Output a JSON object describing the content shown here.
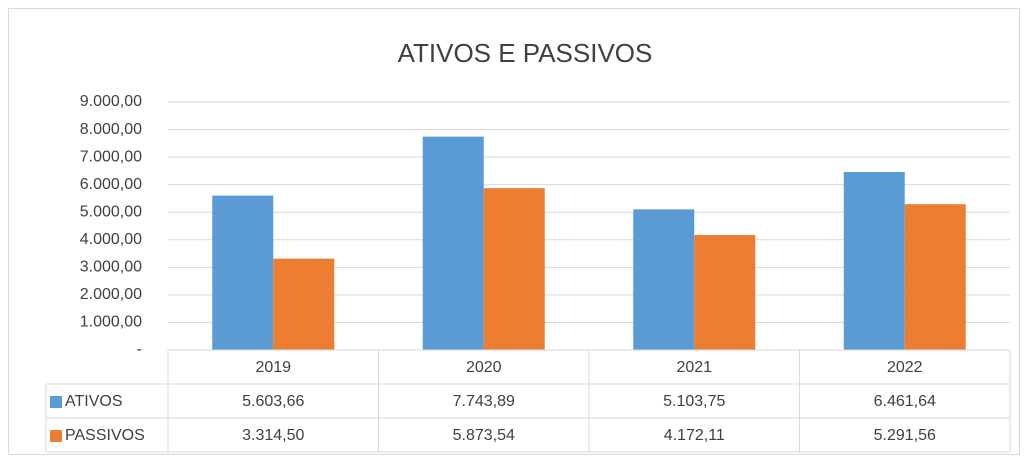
{
  "chart_data": {
    "type": "bar",
    "title": "ATIVOS E PASSIVOS",
    "categories": [
      "2019",
      "2020",
      "2021",
      "2022"
    ],
    "series": [
      {
        "name": "ATIVOS",
        "color": "#5b9bd5",
        "values": [
          5603.66,
          7743.89,
          5103.75,
          6461.64
        ],
        "value_labels": [
          "5.603,66",
          "7.743,89",
          "5.103,75",
          "6.461,64"
        ]
      },
      {
        "name": "PASSIVOS",
        "color": "#ed7d31",
        "values": [
          3314.5,
          5873.54,
          4172.11,
          5291.56
        ],
        "value_labels": [
          "3.314,50",
          "5.873,54",
          "4.172,11",
          "5.291,56"
        ]
      }
    ],
    "ylim": [
      0,
      9000
    ],
    "yticks": [
      {
        "value": 0,
        "label": "-"
      },
      {
        "value": 1000,
        "label": "1.000,00"
      },
      {
        "value": 2000,
        "label": "2.000,00"
      },
      {
        "value": 3000,
        "label": "3.000,00"
      },
      {
        "value": 4000,
        "label": "4.000,00"
      },
      {
        "value": 5000,
        "label": "5.000,00"
      },
      {
        "value": 6000,
        "label": "6.000,00"
      },
      {
        "value": 7000,
        "label": "7.000,00"
      },
      {
        "value": 8000,
        "label": "8.000,00"
      },
      {
        "value": 9000,
        "label": "9.000,00"
      }
    ],
    "grid": true
  }
}
